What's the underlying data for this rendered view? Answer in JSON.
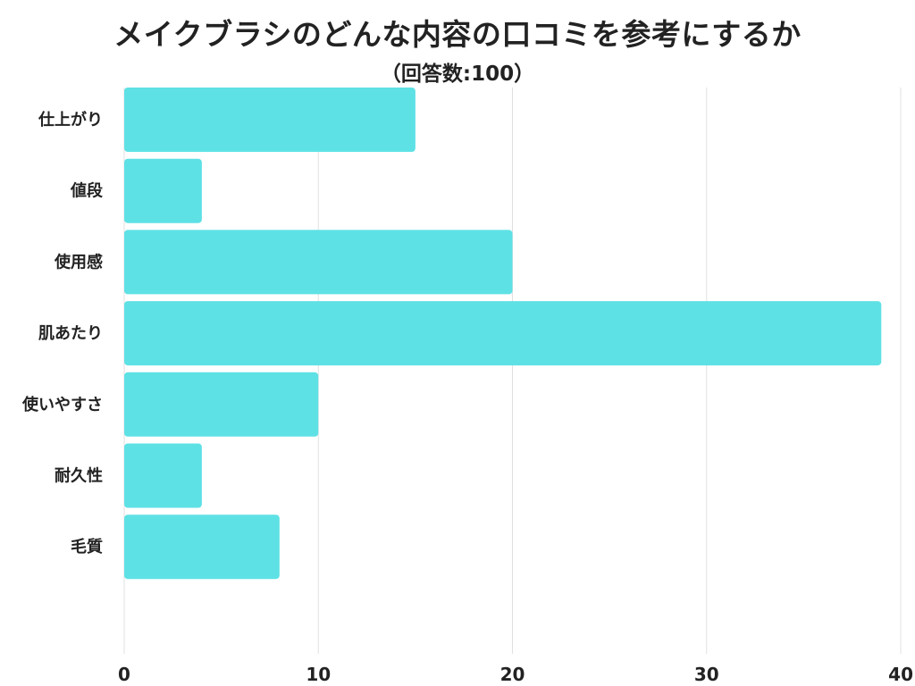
{
  "chart_data": {
    "type": "bar",
    "orientation": "horizontal",
    "title": "メイクブラシのどんな内容の口コミを参考にするか",
    "subtitle": "（回答数:100）",
    "categories": [
      "仕上がり",
      "値段",
      "使用感",
      "肌あたり",
      "使いやすさ",
      "耐久性",
      "毛質"
    ],
    "values": [
      15,
      4,
      20,
      39,
      10,
      4,
      8
    ],
    "xlim": [
      0,
      40
    ],
    "xticks": [
      "0",
      "10",
      "20",
      "30",
      "40"
    ],
    "grid": true,
    "legend": "none",
    "bar_color": "#5ee1e5",
    "grid_color": "#e0e0e0"
  }
}
